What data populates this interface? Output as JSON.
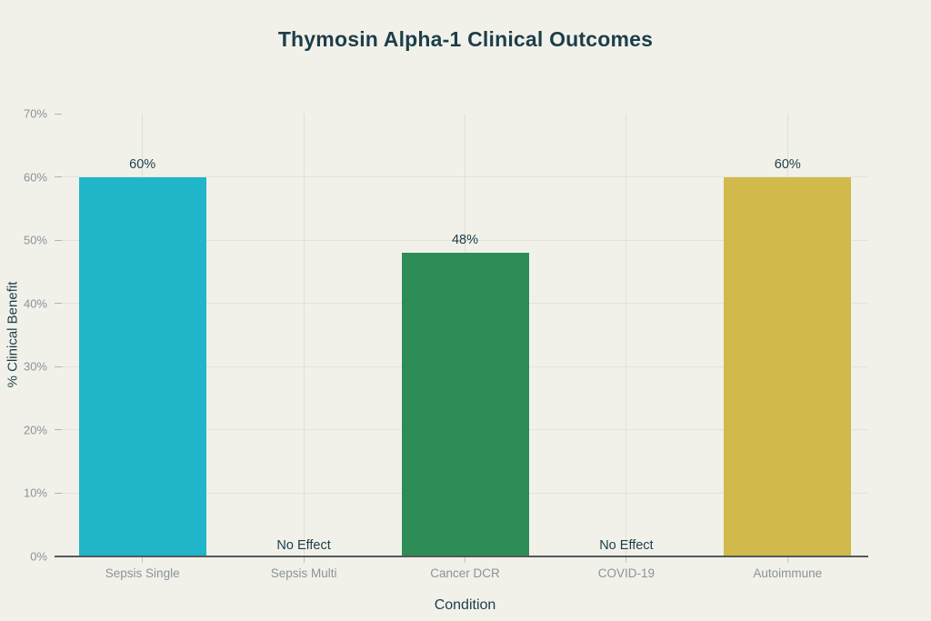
{
  "chart_data": {
    "type": "bar",
    "title": "Thymosin Alpha-1 Clinical Outcomes",
    "xlabel": "Condition",
    "ylabel": "% Clinical Benefit",
    "categories": [
      "Sepsis Single",
      "Sepsis Multi",
      "Cancer DCR",
      "COVID-19",
      "Autoimmune"
    ],
    "values": [
      60,
      0,
      48,
      0,
      60
    ],
    "value_labels": [
      "60%",
      "No Effect",
      "48%",
      "No Effect",
      "60%"
    ],
    "bar_colors": [
      "#21b5c9",
      null,
      "#2e8c57",
      null,
      "#d2b94c"
    ],
    "ylim": [
      0,
      70
    ],
    "yticks": [
      0,
      10,
      20,
      30,
      40,
      50,
      60,
      70
    ],
    "ytick_labels": [
      "0%",
      "10%",
      "20%",
      "30%",
      "40%",
      "50%",
      "60%",
      "70%"
    ],
    "grid": true,
    "legend": "none"
  },
  "colors": {
    "background": "#f1f1ea",
    "title_text": "#1d3e49",
    "axis_text": "#8d929a",
    "axis_line": "#54585b",
    "gridline_h": "#e2e3da",
    "gridline_v": "#dfe0d7"
  }
}
